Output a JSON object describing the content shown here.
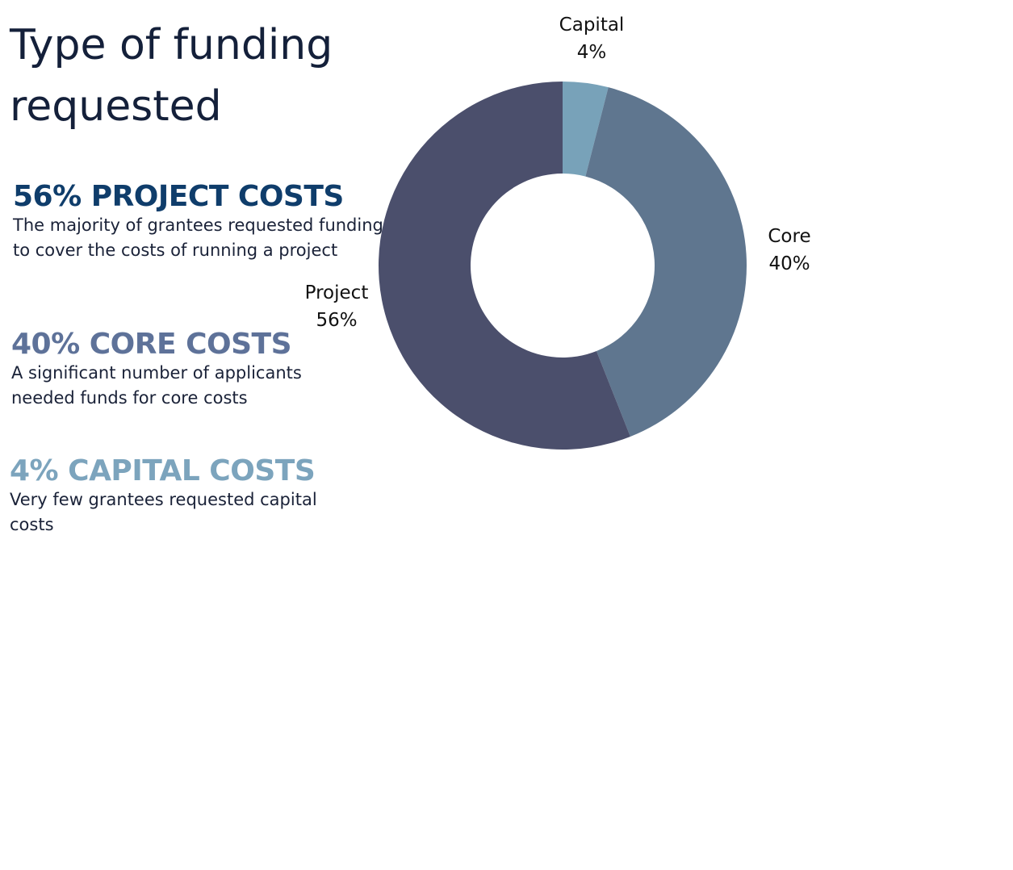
{
  "title": "Type of funding requested",
  "blocks": [
    {
      "heading": "56% PROJECT COSTS",
      "text": "The majority of grantees requested funding to cover the costs of running a project",
      "color": "#0f3d6b"
    },
    {
      "heading": "40% CORE COSTS",
      "text": "A significant number of applicants needed funds for core costs",
      "color": "#5e7299"
    },
    {
      "heading": "4% CAPITAL COSTS",
      "text": "Very few grantees requested capital costs",
      "color": "#7ca4bd"
    }
  ],
  "chart_data": {
    "type": "pie",
    "subtype": "donut",
    "start": "top",
    "direction": "clockwise",
    "slices": [
      {
        "label": "Capital",
        "value": 4,
        "value_label": "4%",
        "color": "#78a2b9"
      },
      {
        "label": "Core",
        "value": 40,
        "value_label": "40%",
        "color": "#5f768f"
      },
      {
        "label": "Project",
        "value": 56,
        "value_label": "56%",
        "color": "#4b4f6c"
      }
    ]
  }
}
